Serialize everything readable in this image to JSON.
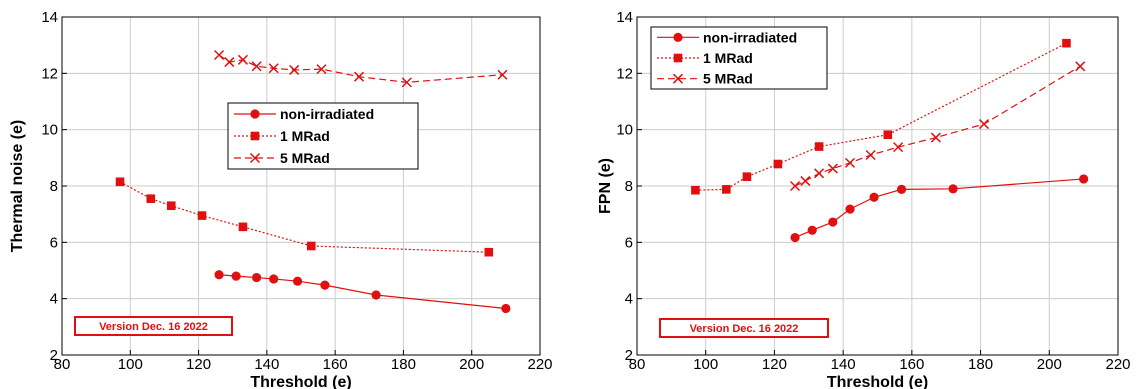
{
  "version_label": "Version Dec. 16 2022",
  "colors": {
    "series": "#e01010",
    "grid": "#cccccc",
    "axis": "#000000"
  },
  "chart_data": [
    {
      "type": "line",
      "xlabel": "Threshold (e)",
      "ylabel": "Thermal noise (e)",
      "xlim": [
        80,
        220
      ],
      "ylim": [
        2,
        14
      ],
      "xticks": [
        80,
        100,
        120,
        140,
        160,
        180,
        200,
        220
      ],
      "yticks": [
        2,
        4,
        6,
        8,
        10,
        12,
        14
      ],
      "grid": true,
      "legend_position": "center-right",
      "series": [
        {
          "name": "non-irradiated",
          "marker": "circle",
          "line": "solid",
          "x": [
            126,
            131,
            137,
            142,
            149,
            157,
            172,
            210
          ],
          "y": [
            4.85,
            4.8,
            4.75,
            4.7,
            4.62,
            4.48,
            4.13,
            3.65
          ]
        },
        {
          "name": "1 MRad",
          "marker": "square",
          "line": "dotted",
          "x": [
            97,
            106,
            112,
            121,
            133,
            153,
            205
          ],
          "y": [
            8.15,
            7.55,
            7.3,
            6.95,
            6.55,
            5.87,
            5.65
          ]
        },
        {
          "name": "5 MRad",
          "marker": "x",
          "line": "dashed",
          "x": [
            126,
            129,
            133,
            137,
            142,
            148,
            156,
            167,
            181,
            209
          ],
          "y": [
            12.65,
            12.4,
            12.48,
            12.25,
            12.18,
            12.12,
            12.15,
            11.88,
            11.68,
            11.95
          ]
        }
      ]
    },
    {
      "type": "line",
      "xlabel": "Threshold (e)",
      "ylabel": "FPN (e)",
      "xlim": [
        80,
        220
      ],
      "ylim": [
        2,
        14
      ],
      "xticks": [
        80,
        100,
        120,
        140,
        160,
        180,
        200,
        220
      ],
      "yticks": [
        2,
        4,
        6,
        8,
        10,
        12,
        14
      ],
      "grid": true,
      "legend_position": "top-left",
      "series": [
        {
          "name": "non-irradiated",
          "marker": "circle",
          "line": "solid",
          "x": [
            126,
            131,
            137,
            142,
            149,
            157,
            172,
            210
          ],
          "y": [
            6.17,
            6.43,
            6.72,
            7.18,
            7.6,
            7.88,
            7.9,
            8.25
          ]
        },
        {
          "name": "1 MRad",
          "marker": "square",
          "line": "dotted",
          "x": [
            97,
            106,
            112,
            121,
            133,
            153,
            205
          ],
          "y": [
            7.85,
            7.88,
            8.33,
            8.78,
            9.4,
            9.82,
            13.07
          ]
        },
        {
          "name": "5 MRad",
          "marker": "x",
          "line": "dashed",
          "x": [
            126,
            129,
            133,
            137,
            142,
            148,
            156,
            167,
            181,
            209
          ],
          "y": [
            8.0,
            8.18,
            8.45,
            8.62,
            8.82,
            9.1,
            9.38,
            9.72,
            10.2,
            12.25
          ]
        }
      ]
    }
  ]
}
